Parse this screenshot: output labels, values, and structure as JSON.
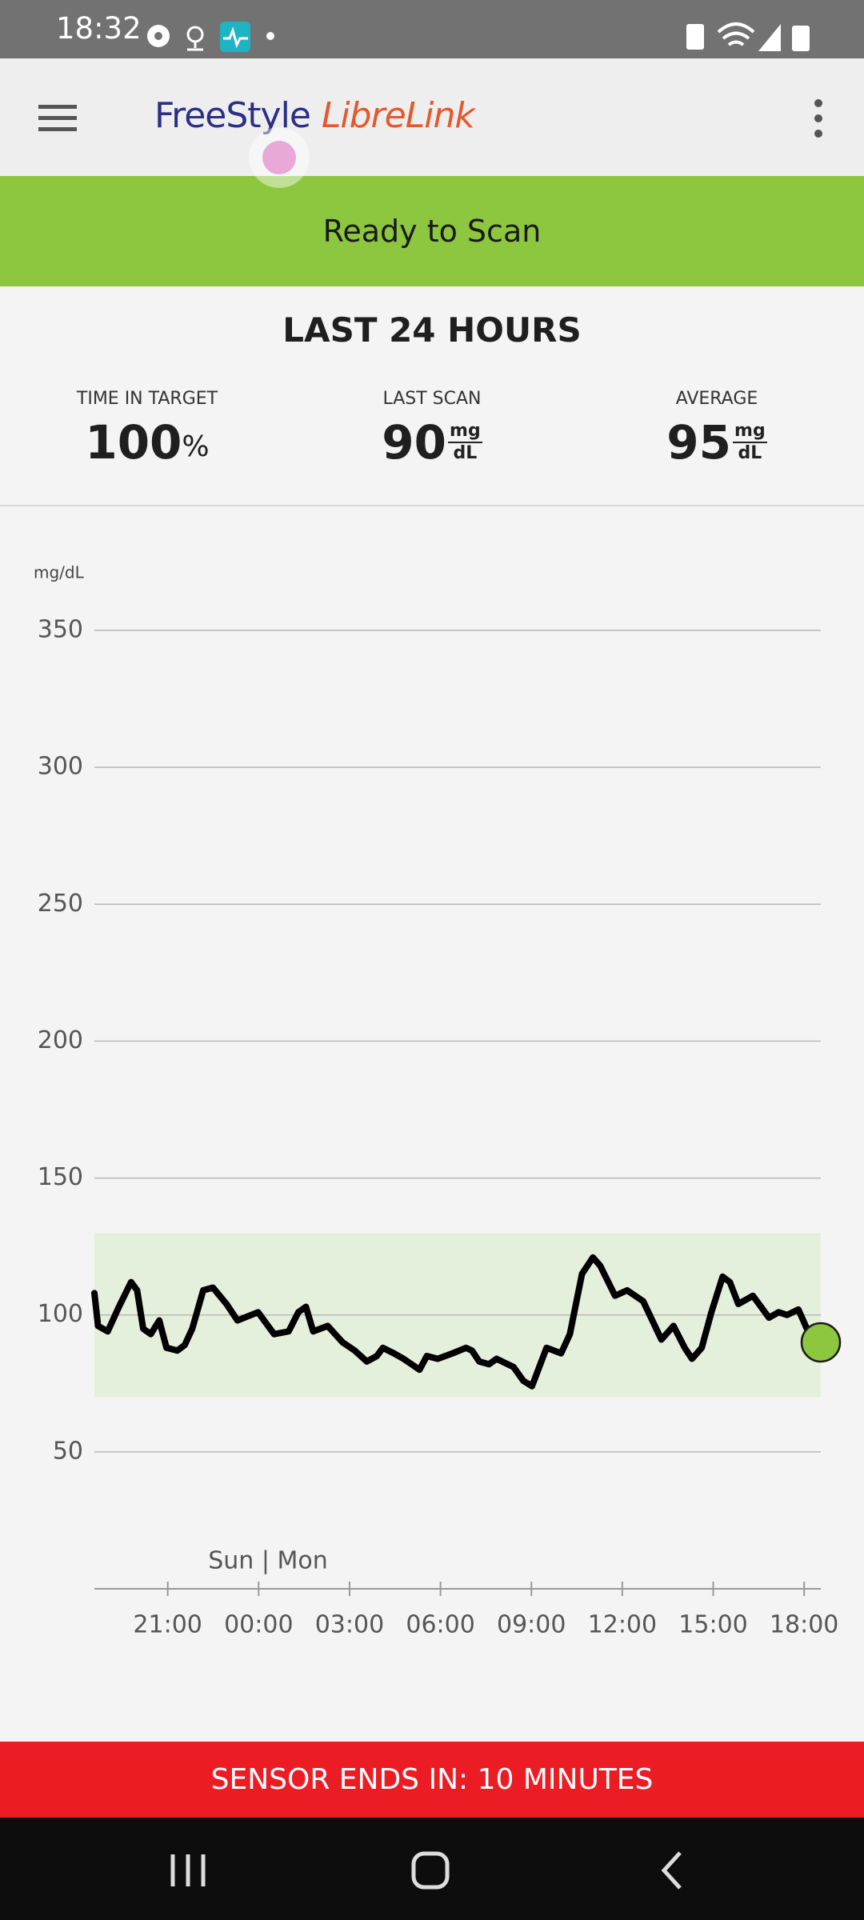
{
  "status_bar": {
    "time": "18:32"
  },
  "app_bar": {
    "brand": "FreeStyle",
    "product": "LibreLink"
  },
  "banner": "Ready to Scan",
  "summary": {
    "title": "LAST 24 HOURS",
    "stats": [
      {
        "label": "TIME IN TARGET",
        "value": 100,
        "unit": "%"
      },
      {
        "label": "LAST SCAN",
        "value": 90,
        "unit_top": "mg",
        "unit_bottom": "dL"
      },
      {
        "label": "AVERAGE",
        "value": 95,
        "unit_top": "mg",
        "unit_bottom": "dL"
      }
    ]
  },
  "chart_data": {
    "type": "line",
    "y_label": "mg/dL",
    "annotation": "Sun | Mon",
    "x": [
      -5.42,
      -5.3,
      -4.98,
      -4.61,
      -4.21,
      -4.01,
      -3.81,
      -3.56,
      -3.28,
      -3.04,
      -2.68,
      -2.44,
      -2.19,
      -1.83,
      -1.51,
      -1.06,
      -0.7,
      -0.02,
      0.51,
      0.99,
      1.31,
      1.56,
      1.8,
      2.28,
      2.77,
      3.17,
      3.57,
      3.9,
      4.1,
      4.46,
      4.78,
      5.31,
      5.55,
      5.91,
      6.4,
      6.84,
      7.04,
      7.28,
      7.6,
      7.85,
      8.41,
      8.73,
      9.02,
      9.5,
      9.98,
      10.27,
      10.67,
      11.03,
      11.27,
      11.76,
      12.16,
      12.69,
      13.29,
      13.69,
      14.06,
      14.3,
      14.62,
      14.94,
      15.31,
      15.55,
      15.83,
      16.31,
      16.84,
      17.16,
      17.44,
      17.81,
      18.09,
      18.55
    ],
    "values": [
      108,
      96,
      94,
      103,
      112,
      109,
      95,
      93,
      98,
      88,
      87,
      89,
      95,
      109,
      110,
      104,
      98,
      101,
      93,
      94,
      101,
      103,
      94,
      96,
      90,
      87,
      83,
      85,
      88,
      86,
      84,
      80,
      85,
      84,
      86,
      88,
      87,
      83,
      82,
      84,
      81,
      76,
      74,
      88,
      86,
      93,
      115,
      121,
      118,
      107,
      109,
      105,
      91,
      96,
      88,
      84,
      88,
      101,
      114,
      112,
      104,
      107,
      99,
      101,
      100,
      102,
      95,
      90
    ],
    "color": "#000000",
    "marker_color": "#8dc63f",
    "target_range": [
      70,
      130
    ],
    "target_color": "#e5f0dc",
    "xlim": [
      -5.42,
      18.55
    ],
    "xticks": [
      {
        "value": -3,
        "label": "21:00"
      },
      {
        "value": 0,
        "label": "00:00"
      },
      {
        "value": 3,
        "label": "03:00"
      },
      {
        "value": 6,
        "label": "06:00"
      },
      {
        "value": 9,
        "label": "09:00"
      },
      {
        "value": 12,
        "label": "12:00"
      },
      {
        "value": 15,
        "label": "15:00"
      },
      {
        "value": 18,
        "label": "18:00"
      }
    ],
    "ylim": [
      0,
      350
    ],
    "yticks": [
      50,
      100,
      150,
      200,
      250,
      300,
      350
    ],
    "grid": true
  },
  "footer": "SENSOR ENDS IN: 10 MINUTES"
}
